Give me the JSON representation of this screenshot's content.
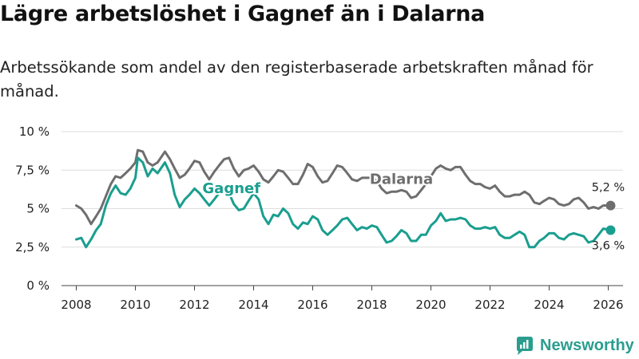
{
  "title": "Lägre arbetslöshet i Gagnef än i Dalarna",
  "subtitle": "Arbetssökande som andel av den registerbaserade arbetskraften månad för månad.",
  "brand": {
    "name": "Newsworthy",
    "color": "#2a9d8f"
  },
  "chart_data": {
    "type": "line",
    "title": "Lägre arbetslöshet i Gagnef än i Dalarna",
    "xlabel": "",
    "ylabel": "",
    "xlim": [
      2007.5,
      2026.5
    ],
    "ylim": [
      0,
      10
    ],
    "grid": true,
    "yticks": [
      {
        "value": 0,
        "label": "0 %"
      },
      {
        "value": 2.5,
        "label": "2,5 %"
      },
      {
        "value": 5,
        "label": "5 %"
      },
      {
        "value": 7.5,
        "label": "7,5 %"
      },
      {
        "value": 10,
        "label": "10 %"
      }
    ],
    "xticks": [
      {
        "value": 2008,
        "label": "2008"
      },
      {
        "value": 2010,
        "label": "2010"
      },
      {
        "value": 2012,
        "label": "2012"
      },
      {
        "value": 2014,
        "label": "2014"
      },
      {
        "value": 2016,
        "label": "2016"
      },
      {
        "value": 2018,
        "label": "2018"
      },
      {
        "value": 2020,
        "label": "2020"
      },
      {
        "value": 2022,
        "label": "2022"
      },
      {
        "value": 2024,
        "label": "2024"
      },
      {
        "value": 2026,
        "label": "2026"
      }
    ],
    "series": [
      {
        "name": "Dalarna",
        "color": "#6e6e6e",
        "end_label": "5,2 %",
        "end_value": 5.2,
        "points": [
          [
            2008.0,
            5.2
          ],
          [
            2008.17,
            5.0
          ],
          [
            2008.33,
            4.6
          ],
          [
            2008.5,
            4.0
          ],
          [
            2008.67,
            4.5
          ],
          [
            2008.83,
            5.0
          ],
          [
            2009.0,
            5.8
          ],
          [
            2009.17,
            6.6
          ],
          [
            2009.33,
            7.1
          ],
          [
            2009.5,
            7.0
          ],
          [
            2009.67,
            7.3
          ],
          [
            2009.83,
            7.6
          ],
          [
            2010.0,
            8.0
          ],
          [
            2010.08,
            8.8
          ],
          [
            2010.25,
            8.7
          ],
          [
            2010.42,
            8.0
          ],
          [
            2010.58,
            7.8
          ],
          [
            2010.75,
            8.0
          ],
          [
            2011.0,
            8.7
          ],
          [
            2011.17,
            8.2
          ],
          [
            2011.33,
            7.6
          ],
          [
            2011.5,
            7.0
          ],
          [
            2011.67,
            7.2
          ],
          [
            2011.83,
            7.6
          ],
          [
            2012.0,
            8.1
          ],
          [
            2012.17,
            8.0
          ],
          [
            2012.33,
            7.4
          ],
          [
            2012.5,
            6.9
          ],
          [
            2012.67,
            7.4
          ],
          [
            2012.83,
            7.8
          ],
          [
            2013.0,
            8.2
          ],
          [
            2013.17,
            8.3
          ],
          [
            2013.33,
            7.6
          ],
          [
            2013.5,
            7.1
          ],
          [
            2013.67,
            7.5
          ],
          [
            2013.83,
            7.6
          ],
          [
            2014.0,
            7.8
          ],
          [
            2014.17,
            7.4
          ],
          [
            2014.33,
            6.9
          ],
          [
            2014.5,
            6.7
          ],
          [
            2014.67,
            7.1
          ],
          [
            2014.83,
            7.5
          ],
          [
            2015.0,
            7.4
          ],
          [
            2015.17,
            7.0
          ],
          [
            2015.33,
            6.6
          ],
          [
            2015.5,
            6.6
          ],
          [
            2015.67,
            7.2
          ],
          [
            2015.83,
            7.9
          ],
          [
            2016.0,
            7.7
          ],
          [
            2016.17,
            7.1
          ],
          [
            2016.33,
            6.7
          ],
          [
            2016.5,
            6.8
          ],
          [
            2016.67,
            7.3
          ],
          [
            2016.83,
            7.8
          ],
          [
            2017.0,
            7.7
          ],
          [
            2017.17,
            7.3
          ],
          [
            2017.33,
            6.9
          ],
          [
            2017.5,
            6.8
          ],
          [
            2017.67,
            7.0
          ],
          [
            2017.83,
            7.0
          ],
          [
            2018.0,
            7.0
          ],
          [
            2018.17,
            6.8
          ],
          [
            2018.33,
            6.3
          ],
          [
            2018.5,
            6.0
          ],
          [
            2018.67,
            6.1
          ],
          [
            2018.83,
            6.1
          ],
          [
            2019.0,
            6.2
          ],
          [
            2019.17,
            6.1
          ],
          [
            2019.33,
            5.7
          ],
          [
            2019.5,
            5.8
          ],
          [
            2019.67,
            6.2
          ],
          [
            2019.83,
            6.6
          ],
          [
            2020.0,
            7.1
          ],
          [
            2020.17,
            7.6
          ],
          [
            2020.33,
            7.8
          ],
          [
            2020.5,
            7.6
          ],
          [
            2020.67,
            7.5
          ],
          [
            2020.83,
            7.7
          ],
          [
            2021.0,
            7.7
          ],
          [
            2021.17,
            7.2
          ],
          [
            2021.33,
            6.8
          ],
          [
            2021.5,
            6.6
          ],
          [
            2021.67,
            6.6
          ],
          [
            2021.83,
            6.4
          ],
          [
            2022.0,
            6.3
          ],
          [
            2022.17,
            6.5
          ],
          [
            2022.33,
            6.1
          ],
          [
            2022.5,
            5.8
          ],
          [
            2022.67,
            5.8
          ],
          [
            2022.83,
            5.9
          ],
          [
            2023.0,
            5.9
          ],
          [
            2023.17,
            6.1
          ],
          [
            2023.33,
            5.9
          ],
          [
            2023.5,
            5.4
          ],
          [
            2023.67,
            5.3
          ],
          [
            2023.83,
            5.5
          ],
          [
            2024.0,
            5.7
          ],
          [
            2024.17,
            5.6
          ],
          [
            2024.33,
            5.3
          ],
          [
            2024.5,
            5.2
          ],
          [
            2024.67,
            5.3
          ],
          [
            2024.83,
            5.6
          ],
          [
            2025.0,
            5.7
          ],
          [
            2025.17,
            5.4
          ],
          [
            2025.33,
            5.0
          ],
          [
            2025.5,
            5.1
          ],
          [
            2025.67,
            5.0
          ],
          [
            2025.83,
            5.2
          ],
          [
            2026.08,
            5.2
          ]
        ]
      },
      {
        "name": "Gagnef",
        "color": "#1a9e8f",
        "end_label": "3,6 %",
        "end_value": 3.6,
        "points": [
          [
            2008.0,
            3.0
          ],
          [
            2008.17,
            3.1
          ],
          [
            2008.33,
            2.5
          ],
          [
            2008.5,
            3.0
          ],
          [
            2008.67,
            3.6
          ],
          [
            2008.83,
            4.0
          ],
          [
            2009.0,
            5.2
          ],
          [
            2009.17,
            6.0
          ],
          [
            2009.33,
            6.5
          ],
          [
            2009.5,
            6.0
          ],
          [
            2009.67,
            5.9
          ],
          [
            2009.83,
            6.3
          ],
          [
            2010.0,
            7.0
          ],
          [
            2010.08,
            8.3
          ],
          [
            2010.25,
            8.0
          ],
          [
            2010.42,
            7.1
          ],
          [
            2010.58,
            7.6
          ],
          [
            2010.75,
            7.3
          ],
          [
            2011.0,
            8.0
          ],
          [
            2011.17,
            7.3
          ],
          [
            2011.33,
            5.9
          ],
          [
            2011.5,
            5.1
          ],
          [
            2011.67,
            5.6
          ],
          [
            2011.83,
            5.9
          ],
          [
            2012.0,
            6.3
          ],
          [
            2012.17,
            6.0
          ],
          [
            2012.33,
            5.6
          ],
          [
            2012.5,
            5.2
          ],
          [
            2012.67,
            5.6
          ],
          [
            2012.83,
            6.0
          ],
          [
            2013.0,
            6.3
          ],
          [
            2013.17,
            6.0
          ],
          [
            2013.33,
            5.3
          ],
          [
            2013.5,
            4.9
          ],
          [
            2013.67,
            5.0
          ],
          [
            2013.83,
            5.5
          ],
          [
            2014.0,
            6.0
          ],
          [
            2014.17,
            5.6
          ],
          [
            2014.33,
            4.5
          ],
          [
            2014.5,
            4.0
          ],
          [
            2014.67,
            4.6
          ],
          [
            2014.83,
            4.5
          ],
          [
            2015.0,
            5.0
          ],
          [
            2015.17,
            4.7
          ],
          [
            2015.33,
            4.0
          ],
          [
            2015.5,
            3.7
          ],
          [
            2015.67,
            4.1
          ],
          [
            2015.83,
            4.0
          ],
          [
            2016.0,
            4.5
          ],
          [
            2016.17,
            4.3
          ],
          [
            2016.33,
            3.6
          ],
          [
            2016.5,
            3.3
          ],
          [
            2016.67,
            3.6
          ],
          [
            2016.83,
            3.9
          ],
          [
            2017.0,
            4.3
          ],
          [
            2017.17,
            4.4
          ],
          [
            2017.33,
            4.0
          ],
          [
            2017.5,
            3.6
          ],
          [
            2017.67,
            3.8
          ],
          [
            2017.83,
            3.7
          ],
          [
            2018.0,
            3.9
          ],
          [
            2018.17,
            3.8
          ],
          [
            2018.33,
            3.3
          ],
          [
            2018.5,
            2.8
          ],
          [
            2018.67,
            2.9
          ],
          [
            2018.83,
            3.2
          ],
          [
            2019.0,
            3.6
          ],
          [
            2019.17,
            3.4
          ],
          [
            2019.33,
            2.9
          ],
          [
            2019.5,
            2.9
          ],
          [
            2019.67,
            3.3
          ],
          [
            2019.83,
            3.3
          ],
          [
            2020.0,
            3.9
          ],
          [
            2020.17,
            4.2
          ],
          [
            2020.33,
            4.7
          ],
          [
            2020.5,
            4.2
          ],
          [
            2020.67,
            4.3
          ],
          [
            2020.83,
            4.3
          ],
          [
            2021.0,
            4.4
          ],
          [
            2021.17,
            4.3
          ],
          [
            2021.33,
            3.9
          ],
          [
            2021.5,
            3.7
          ],
          [
            2021.67,
            3.7
          ],
          [
            2021.83,
            3.8
          ],
          [
            2022.0,
            3.7
          ],
          [
            2022.17,
            3.8
          ],
          [
            2022.33,
            3.3
          ],
          [
            2022.5,
            3.1
          ],
          [
            2022.67,
            3.1
          ],
          [
            2022.83,
            3.3
          ],
          [
            2023.0,
            3.5
          ],
          [
            2023.17,
            3.3
          ],
          [
            2023.33,
            2.5
          ],
          [
            2023.5,
            2.5
          ],
          [
            2023.67,
            2.9
          ],
          [
            2023.83,
            3.1
          ],
          [
            2024.0,
            3.4
          ],
          [
            2024.17,
            3.4
          ],
          [
            2024.33,
            3.1
          ],
          [
            2024.5,
            3.0
          ],
          [
            2024.67,
            3.3
          ],
          [
            2024.83,
            3.4
          ],
          [
            2025.0,
            3.3
          ],
          [
            2025.17,
            3.2
          ],
          [
            2025.33,
            2.8
          ],
          [
            2025.5,
            2.9
          ],
          [
            2025.67,
            3.3
          ],
          [
            2025.83,
            3.7
          ],
          [
            2026.08,
            3.6
          ]
        ]
      }
    ]
  }
}
